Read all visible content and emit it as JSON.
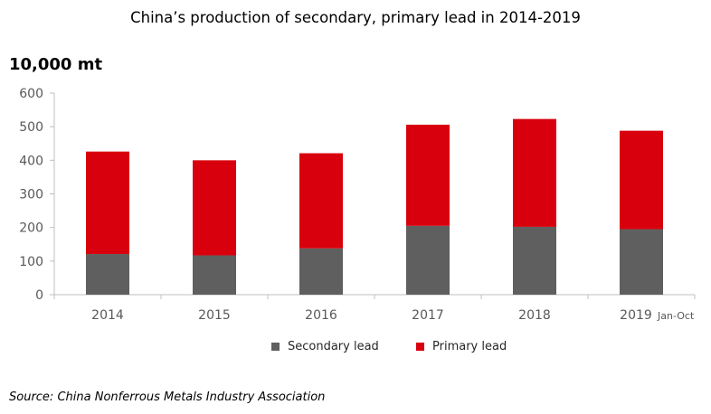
{
  "title": "China’s production of secondary, primary lead in 2014-2019",
  "unit_label": "10,000 mt",
  "source": "Source: China Nonferrous Metals Industry Association",
  "colors": {
    "secondary": "#5f5f5f",
    "primary": "#d9000d",
    "axis": "#bfbfbf",
    "tick_text": "#595959"
  },
  "chart_data": {
    "type": "bar",
    "stacked": true,
    "categories": [
      "2014",
      "2015",
      "2016",
      "2017",
      "2018",
      "2019"
    ],
    "category_notes": [
      "",
      "",
      "",
      "",
      "",
      "Jan-Oct"
    ],
    "series": [
      {
        "name": "Secondary lead",
        "values": [
          121,
          117,
          138,
          205,
          202,
          195
        ]
      },
      {
        "name": "Primary lead",
        "values": [
          305,
          283,
          283,
          301,
          321,
          293
        ]
      }
    ],
    "ylim": [
      0,
      600
    ],
    "yticks": [
      0,
      100,
      200,
      300,
      400,
      500,
      600
    ],
    "grid": false,
    "legend_position": "bottom"
  }
}
